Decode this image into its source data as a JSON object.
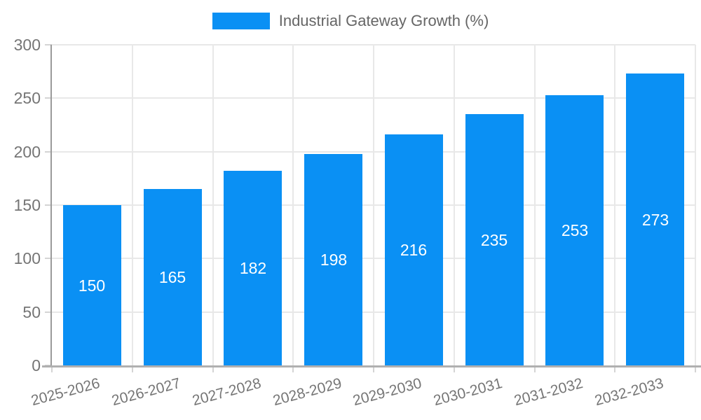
{
  "chart_data": {
    "type": "bar",
    "categories": [
      "2025-2026",
      "2026-2027",
      "2027-2028",
      "2028-2029",
      "2029-2030",
      "2030-2031",
      "2031-2032",
      "2032-2033"
    ],
    "series": [
      {
        "name": "Industrial Gateway Growth (%)",
        "values": [
          150,
          165,
          182,
          198,
          216,
          235,
          253,
          273
        ]
      }
    ],
    "value_labels": [
      150,
      165,
      182,
      198,
      216,
      235,
      253,
      273
    ],
    "value_label_position": "inside-center",
    "ylim": [
      0,
      300
    ],
    "yticks": [
      0,
      50,
      100,
      150,
      200,
      250,
      300
    ],
    "grid": true,
    "legend_position": "top",
    "x_label_rotation_deg": -15,
    "colors": {
      "bar": "#0a90f4",
      "value_label": "#ffffff",
      "axis_text": "#757575",
      "legend_text": "#666666",
      "grid_line": "#e8e8e8",
      "tick_mark": "#d4d4d4",
      "y_axis_line": "#9a9a9a",
      "x_axis_line": "#b0b0b0"
    }
  }
}
